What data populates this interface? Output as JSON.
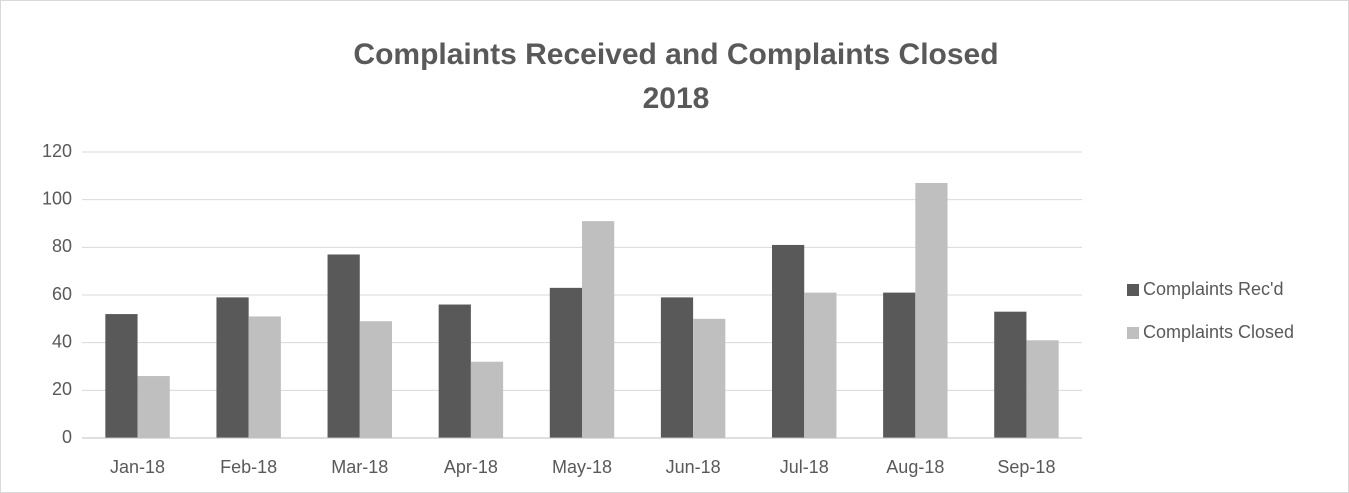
{
  "chart_data": {
    "type": "bar",
    "title": [
      "Complaints Received and Complaints Closed",
      "2018"
    ],
    "categories": [
      "Jan-18",
      "Feb-18",
      "Mar-18",
      "Apr-18",
      "May-18",
      "Jun-18",
      "Jul-18",
      "Aug-18",
      "Sep-18"
    ],
    "series": [
      {
        "name": "Complaints Rec'd",
        "color": "#595959",
        "values": [
          52,
          59,
          77,
          56,
          63,
          59,
          81,
          61,
          53
        ]
      },
      {
        "name": "Complaints Closed",
        "color": "#bfbfbf",
        "values": [
          26,
          51,
          49,
          32,
          91,
          50,
          61,
          107,
          41
        ]
      }
    ],
    "ylim": [
      0,
      120
    ],
    "yticks": [
      0,
      20,
      40,
      60,
      80,
      100,
      120
    ],
    "grid": true,
    "legend": "right"
  }
}
